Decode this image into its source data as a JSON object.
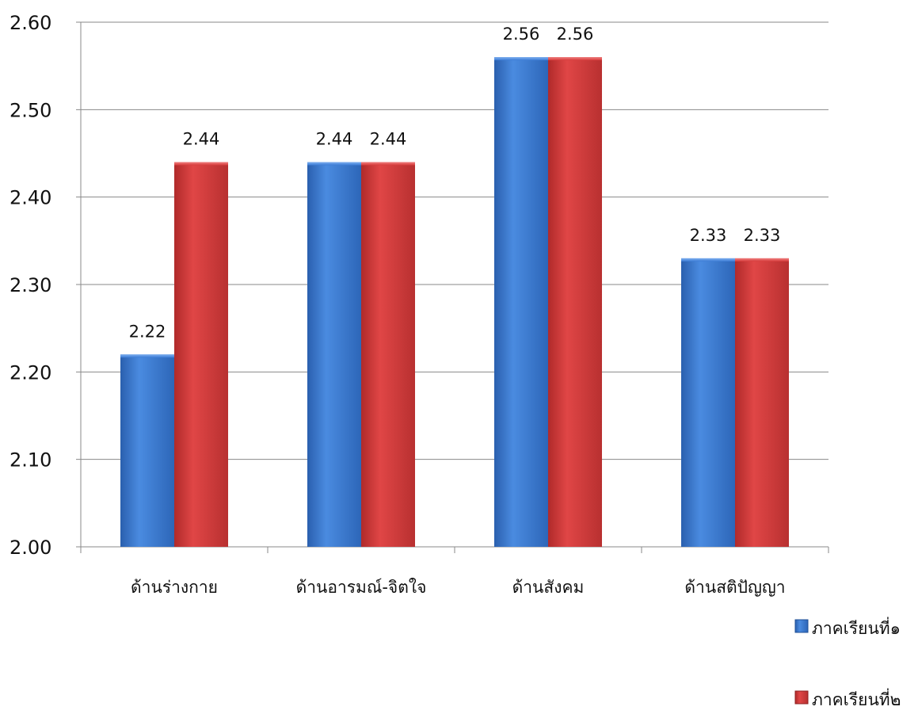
{
  "chart_data": {
    "type": "bar",
    "title": "",
    "xlabel": "",
    "ylabel": "",
    "ylim": [
      2.0,
      2.6
    ],
    "yticks": [
      "2.00",
      "2.10",
      "2.20",
      "2.30",
      "2.40",
      "2.50",
      "2.60"
    ],
    "grid": true,
    "legend_position": "bottom-right",
    "categories": [
      "ด้านร่างกาย",
      "ด้านอารมณ์-จิตใจ",
      "ด้านสังคม",
      "ด้านสติปัญญา"
    ],
    "series": [
      {
        "name": "ภาคเรียนที่๑",
        "values": [
          2.22,
          2.44,
          2.56,
          2.33
        ],
        "labels": [
          "2.22",
          "2.44",
          "2.56",
          "2.33"
        ],
        "color": "#3a7bd5"
      },
      {
        "name": "ภาคเรียนที่๒",
        "values": [
          2.44,
          2.44,
          2.56,
          2.33
        ],
        "labels": [
          "2.44",
          "2.44",
          "2.56",
          "2.33"
        ],
        "color": "#d63a3a"
      }
    ]
  }
}
